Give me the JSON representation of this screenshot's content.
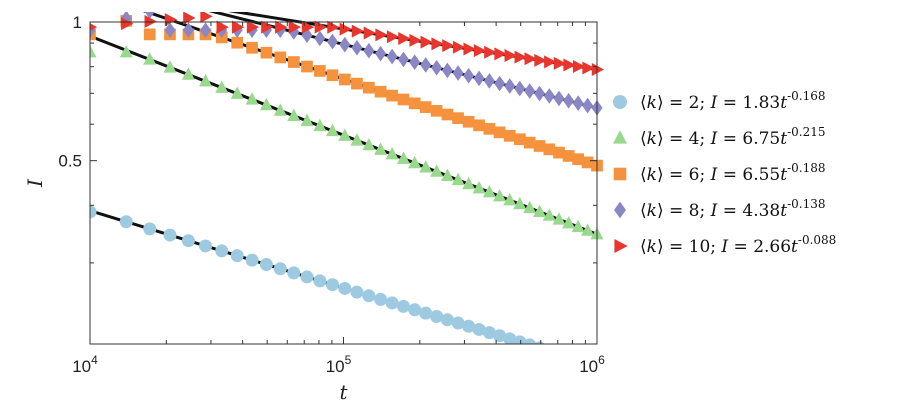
{
  "chart_data": {
    "type": "scatter",
    "xscale": "log",
    "yscale": "log",
    "xlim": [
      10000,
      1000000
    ],
    "ylim": [
      0.2,
      1.0
    ],
    "xlabel": "t",
    "ylabel": "I",
    "x_ticks": [
      {
        "value": 10000,
        "base": "10",
        "exp": "4"
      },
      {
        "value": 100000,
        "base": "10",
        "exp": "5"
      },
      {
        "value": 1000000,
        "base": "10",
        "exp": "6"
      }
    ],
    "y_ticks": [
      {
        "value": 0.5,
        "label": "0.5"
      },
      {
        "value": 1.0,
        "label": "1"
      }
    ],
    "legend_position": "right",
    "series": [
      {
        "name": "k2",
        "k": "2",
        "prefactor": "1.83",
        "exponent": "-0.168",
        "A": 1.83,
        "b": 0.168,
        "marker": "circle",
        "color": "#9ecae1",
        "data_start": 10000,
        "data_start_value": 0.387,
        "fit_start": 10000,
        "n_points": 40
      },
      {
        "name": "k4",
        "k": "4",
        "prefactor": "6.75",
        "exponent": "-0.215",
        "A": 6.75,
        "b": 0.215,
        "marker": "triangle",
        "color": "#98d98e",
        "data_start": 10000,
        "data_start_value": 0.86,
        "fit_start": 10000,
        "n_points": 40
      },
      {
        "name": "k6",
        "k": "6",
        "prefactor": "6.55",
        "exponent": "-0.188",
        "A": 6.55,
        "b": 0.188,
        "marker": "square",
        "color": "#f5923e",
        "data_start": 10000,
        "data_start_value": 0.94,
        "fit_start": 15000,
        "n_points": 40
      },
      {
        "name": "k8",
        "k": "8",
        "prefactor": "4.38",
        "exponent": "-0.138",
        "A": 4.38,
        "b": 0.138,
        "marker": "diamond",
        "color": "#8b86c4",
        "data_start": 10000,
        "data_start_value": 0.96,
        "fit_start": 18000,
        "n_points": 40
      },
      {
        "name": "k10",
        "k": "10",
        "prefactor": "2.66",
        "exponent": "-0.088",
        "A": 2.66,
        "b": 0.088,
        "marker": "triangle-right",
        "color": "#e8362d",
        "data_start": 10000,
        "data_start_value": 0.975,
        "fit_start": 31000,
        "n_points": 40
      }
    ]
  }
}
